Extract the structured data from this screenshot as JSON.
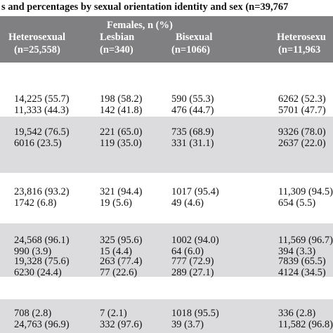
{
  "caption": "s and percentages by sexual orientation identity and sex (n=39,767",
  "header": {
    "group_label": "Females, n (%)",
    "columns": [
      {
        "name": "Heterosexual",
        "n": "(n=25,558)"
      },
      {
        "name": "Lesbian",
        "n": "(n=340)"
      },
      {
        "name": "Bisexual",
        "n": "(n=1066)"
      },
      {
        "name": "Heterosexu",
        "n": "(n=11,963"
      }
    ]
  },
  "groups": [
    {
      "shaded": false,
      "rows": [
        [
          "14,225 (55.7)",
          "198 (58.2)",
          "590 (55.3)",
          "6262 (52.3)"
        ],
        [
          "11,333 (44.3)",
          "142 (41.8)",
          "476 (44.7)",
          "5701 (47.7)"
        ]
      ]
    },
    {
      "shaded": true,
      "rows": [
        [
          "19,542 (76.5)",
          "221 (65.0)",
          "735 (68.9)",
          "9326 (78.0)"
        ],
        [
          "6016 (23.5)",
          "119 (35.0)",
          "331 (31.1)",
          "2637 (22.0)"
        ]
      ]
    },
    {
      "shaded": false,
      "rows": [
        [
          "23,816 (93.2)",
          "321 (94.4)",
          "1017 (95.4)",
          "11,309 (94.5)"
        ],
        [
          "1742 (6.8)",
          "19 (5.6)",
          "49 (4.6)",
          "654 (5.5)"
        ]
      ]
    },
    {
      "shaded": true,
      "rows": [
        [
          "24,568 (96.1)",
          "325 (95.6)",
          "1002 (94.0)",
          "11,569 (96.7)"
        ],
        [
          "990 (3.9)",
          "15 (4.4)",
          "64 (6.0)",
          "394 (3.3)"
        ]
      ]
    },
    {
      "shaded": false,
      "rows": [
        [
          "19,328 (75.6)",
          "263 (77.4)",
          "777 (72.9)",
          "7839 (65.5)"
        ],
        [
          "6230 (24.4)",
          "77 (22.6)",
          "289 (27.1)",
          "4124 (34.5)"
        ]
      ]
    },
    {
      "shaded": true,
      "rows": [
        [
          "708 (2.8)",
          "7 (2.1)",
          "1018 (95.5)",
          "336 (2.8)"
        ],
        [
          "24,763 (96.9)",
          "332 (97.6)",
          "39 (3.7)",
          "11,582 (96.8)"
        ]
      ]
    }
  ]
}
